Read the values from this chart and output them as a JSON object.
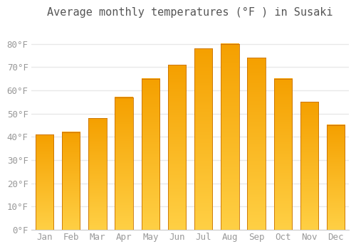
{
  "title": "Average monthly temperatures (°F ) in Susaki",
  "months": [
    "Jan",
    "Feb",
    "Mar",
    "Apr",
    "May",
    "Jun",
    "Jul",
    "Aug",
    "Sep",
    "Oct",
    "Nov",
    "Dec"
  ],
  "values": [
    41,
    42,
    48,
    57,
    65,
    71,
    78,
    80,
    74,
    65,
    55,
    45
  ],
  "bar_color_bottom": "#FFD045",
  "bar_color_top": "#F5A000",
  "bar_edge_color": "#C87000",
  "background_color": "#FFFFFF",
  "grid_color": "#E8E8E8",
  "text_color": "#999999",
  "ylim": [
    0,
    88
  ],
  "yticks": [
    0,
    10,
    20,
    30,
    40,
    50,
    60,
    70,
    80
  ],
  "title_fontsize": 11,
  "tick_fontsize": 9,
  "font_family": "monospace",
  "bar_width": 0.68
}
